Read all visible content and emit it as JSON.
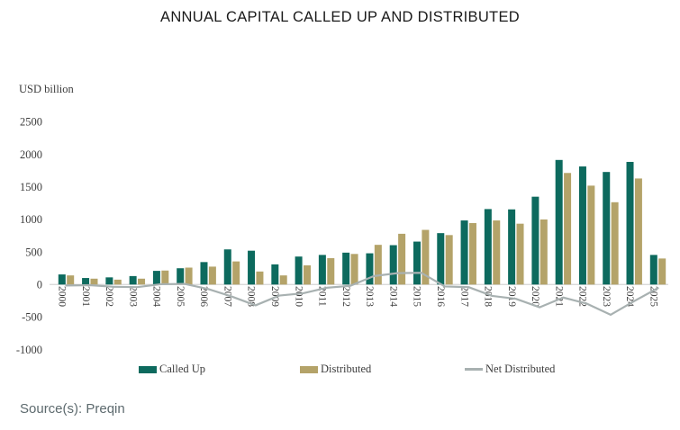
{
  "title": "ANNUAL CAPITAL CALLED UP AND DISTRIBUTED",
  "axis_unit": "USD billion",
  "source": "Source(s): Preqin",
  "colors": {
    "called_up": "#0d6a5e",
    "distributed": "#b4a369",
    "net_distributed": "#a8b1b1",
    "axis_line": "#d4d4d4",
    "tick_text": "#3c3c3c"
  },
  "chart_data": {
    "type": "bar",
    "subtype": "grouped-bars-with-line-overlay",
    "title": "ANNUAL CAPITAL CALLED UP AND DISTRIBUTED",
    "xlabel": "",
    "ylabel": "USD billion",
    "ylim": [
      -1000,
      2500
    ],
    "yticks": [
      2500,
      2000,
      1500,
      1000,
      500,
      0,
      -500,
      -1000
    ],
    "grid": false,
    "legend_position": "bottom",
    "categories": [
      "2000",
      "2001",
      "2002",
      "2003",
      "2004",
      "2005",
      "2006",
      "2007",
      "2008",
      "2009",
      "2010",
      "2011",
      "2012",
      "2013",
      "2014",
      "2015",
      "2016",
      "2017",
      "2018",
      "2019",
      "2020",
      "2021",
      "2022",
      "2023",
      "2024",
      "2025"
    ],
    "series": [
      {
        "name": "Called Up",
        "type": "bar",
        "color": "#0d6a5e",
        "values": [
          155,
          100,
          110,
          130,
          210,
          250,
          345,
          540,
          520,
          310,
          430,
          455,
          490,
          480,
          605,
          660,
          790,
          985,
          1160,
          1155,
          1350,
          1915,
          1815,
          1730,
          1885,
          455
        ]
      },
      {
        "name": "Distributed",
        "type": "bar",
        "color": "#b4a369",
        "values": [
          140,
          90,
          75,
          90,
          215,
          260,
          275,
          355,
          200,
          140,
          295,
          405,
          470,
          610,
          780,
          840,
          760,
          945,
          985,
          935,
          1000,
          1715,
          1520,
          1265,
          1630,
          400
        ]
      },
      {
        "name": "Net Distributed",
        "type": "line",
        "color": "#a8b1b1",
        "values": [
          -15,
          -10,
          -35,
          -40,
          5,
          10,
          -70,
          -185,
          -320,
          -170,
          -135,
          -50,
          -20,
          130,
          175,
          180,
          -30,
          -40,
          -175,
          -220,
          -350,
          -200,
          -295,
          -465,
          -255,
          -55
        ]
      }
    ]
  }
}
